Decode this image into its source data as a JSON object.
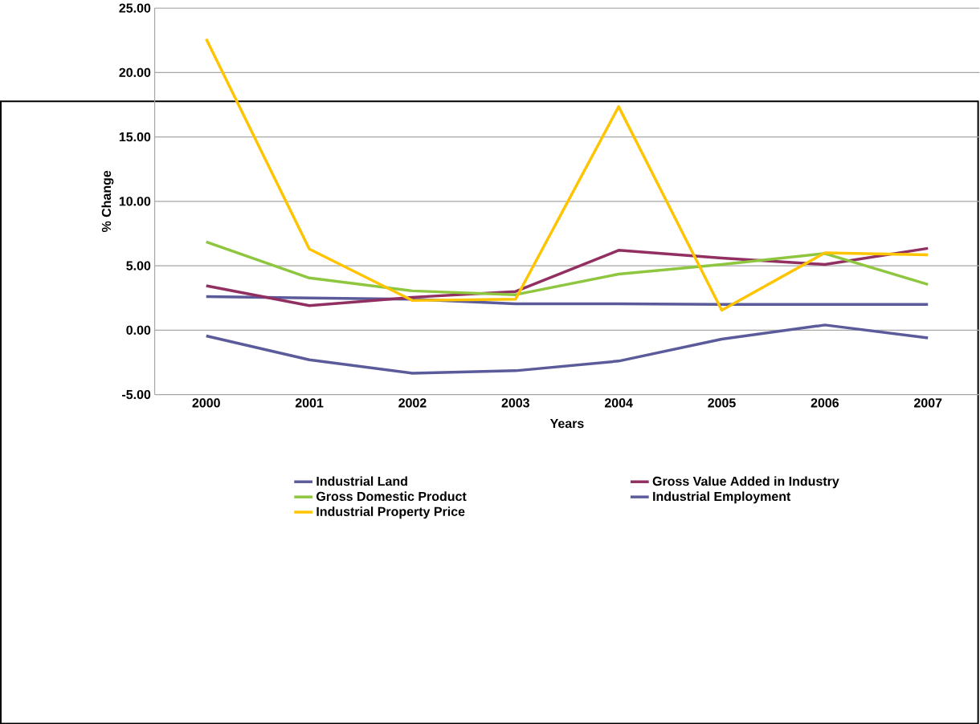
{
  "chart_data": {
    "type": "line",
    "xlabel": "Years",
    "ylabel": "% Change",
    "categories": [
      "2000",
      "2001",
      "2002",
      "2003",
      "2004",
      "2005",
      "2006",
      "2007"
    ],
    "series": [
      {
        "name": "Industrial Land",
        "color": "#5b5b9b",
        "values": [
          2.6,
          2.5,
          2.4,
          2.05,
          2.05,
          2.0,
          2.0,
          2.0
        ]
      },
      {
        "name": "Gross Value Added in Industry",
        "color": "#912f61",
        "values": [
          3.45,
          1.9,
          2.55,
          3.0,
          6.2,
          5.6,
          5.1,
          6.35
        ]
      },
      {
        "name": "Gross Domestic Product",
        "color": "#8ec63f",
        "values": [
          6.85,
          4.05,
          3.05,
          2.75,
          4.35,
          5.1,
          5.95,
          3.55
        ]
      },
      {
        "name": "Industrial Employment",
        "color": "#5b5b9b",
        "values": [
          -0.45,
          -2.3,
          -3.35,
          -3.15,
          -2.4,
          -0.7,
          0.4,
          -0.6
        ]
      },
      {
        "name": "Industrial Property Price",
        "color": "#ffc400",
        "values": [
          22.6,
          6.3,
          2.3,
          2.4,
          17.35,
          1.55,
          6.0,
          5.85
        ]
      }
    ],
    "ylim": [
      -5,
      25
    ],
    "yticks": [
      {
        "value": -5,
        "label": "-5.00"
      },
      {
        "value": 0,
        "label": "0.00"
      },
      {
        "value": 5,
        "label": "5.00"
      },
      {
        "value": 10,
        "label": "10.00"
      },
      {
        "value": 15,
        "label": "15.00"
      },
      {
        "value": 20,
        "label": "20.00"
      },
      {
        "value": 25,
        "label": "25.00"
      }
    ],
    "grid": "y",
    "legend": "bottom",
    "marker": "none",
    "line_style": "solid"
  }
}
